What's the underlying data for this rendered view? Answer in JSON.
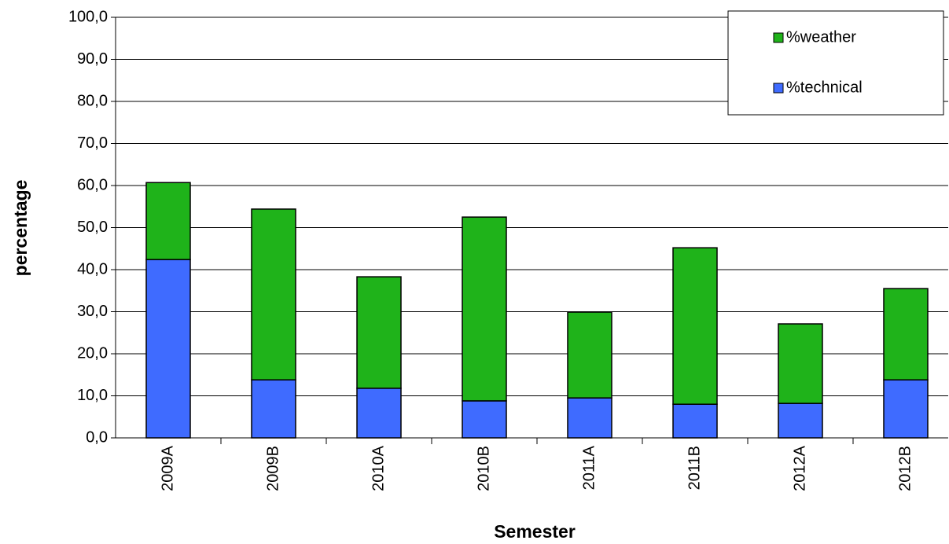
{
  "chart_data": {
    "type": "stacked_bar",
    "x_label": "Semester",
    "y_label": "percentage",
    "categories": [
      "2009A",
      "2009B",
      "2010A",
      "2010B",
      "2011A",
      "2011B",
      "2012A",
      "2012B"
    ],
    "series": [
      {
        "name": "%technical",
        "color": "#3f6bff",
        "values": [
          42.4,
          13.8,
          11.8,
          8.8,
          9.5,
          8.0,
          8.2,
          13.8
        ]
      },
      {
        "name": "%weather",
        "color": "#1fb31a",
        "values": [
          18.3,
          40.6,
          26.5,
          43.7,
          20.4,
          37.2,
          18.9,
          21.7
        ]
      }
    ],
    "ylim": [
      0,
      100
    ],
    "yticks": [
      {
        "value": 0,
        "label": "0,0"
      },
      {
        "value": 10,
        "label": "10,0"
      },
      {
        "value": 20,
        "label": "20,0"
      },
      {
        "value": 30,
        "label": "30,0"
      },
      {
        "value": 40,
        "label": "40,0"
      },
      {
        "value": 50,
        "label": "50,0"
      },
      {
        "value": 60,
        "label": "60,0"
      },
      {
        "value": 70,
        "label": "70,0"
      },
      {
        "value": 80,
        "label": "80,0"
      },
      {
        "value": 90,
        "label": "90,0"
      },
      {
        "value": 100,
        "label": "100,0"
      }
    ],
    "grid": true,
    "legend": "top-right"
  }
}
